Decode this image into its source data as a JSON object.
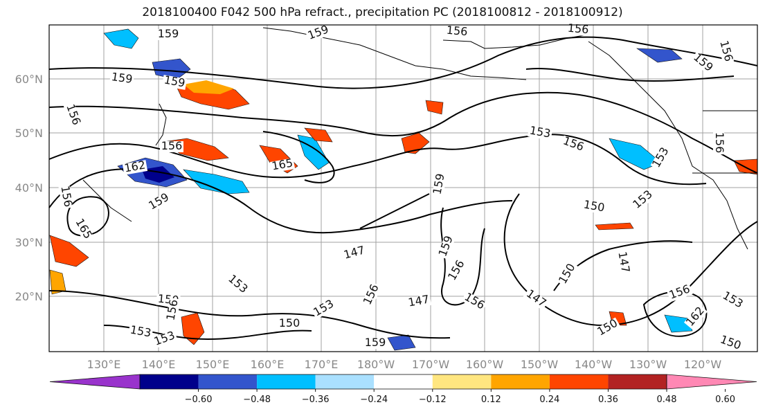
{
  "title": "2018100400 F042 500 hPa refract., precipitation PC (2018100812 - 2018100912)",
  "lat_labels": [
    "60°N",
    "50°N",
    "40°N",
    "30°N",
    "20°N"
  ],
  "lon_labels": [
    "130°E",
    "140°E",
    "150°E",
    "160°E",
    "170°E",
    "180°W",
    "170°W",
    "160°W",
    "150°W",
    "140°W",
    "130°W",
    "120°W"
  ],
  "contour_labels": [
    "159",
    "159",
    "159",
    "159",
    "156",
    "156",
    "156",
    "159",
    "156",
    "156",
    "162",
    "165",
    "153",
    "156",
    "156",
    "153",
    "159",
    "156",
    "159",
    "150",
    "153",
    "147",
    "150",
    "159",
    "156",
    "147",
    "150",
    "147",
    "153",
    "150",
    "156",
    "162",
    "153",
    "153",
    "156",
    "150",
    "153",
    "153",
    "159",
    "150",
    "147",
    "156",
    "165",
    "156"
  ],
  "colorbar": {
    "colors": [
      "#9933cc",
      "#00008b",
      "#3355cc",
      "#00bfff",
      "#aae0ff",
      "#ffffff",
      "#ffe680",
      "#ffa500",
      "#ff4500",
      "#b22222",
      "#ff88b4"
    ],
    "labels": [
      "−0.60",
      "−0.48",
      "−0.36",
      "−0.24",
      "−0.12",
      "0.12",
      "0.24",
      "0.36",
      "0.48",
      "0.60"
    ]
  }
}
